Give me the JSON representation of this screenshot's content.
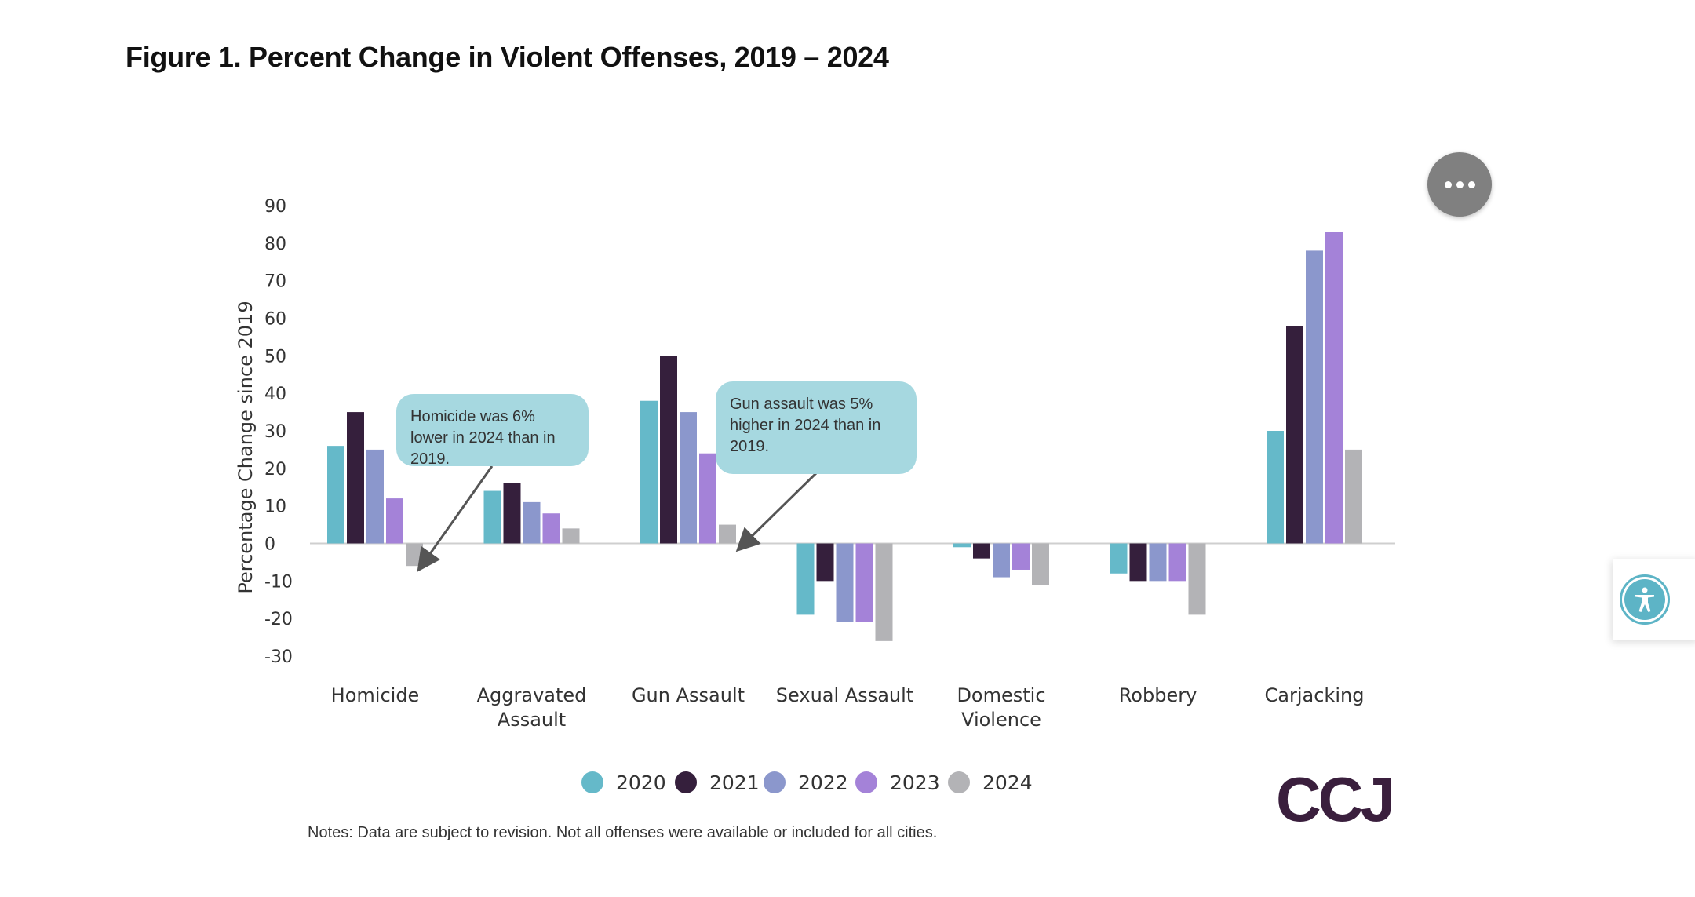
{
  "title": "Figure 1. Percent Change in Violent Offenses, 2019 – 2024",
  "chart_data": {
    "type": "bar",
    "ylabel": "Percentage Change since 2019",
    "xlabel": "",
    "ylim": [
      -30,
      90
    ],
    "yticks": [
      90,
      80,
      70,
      60,
      50,
      40,
      30,
      20,
      10,
      0,
      -10,
      -20,
      -30
    ],
    "categories": [
      [
        "Homicide"
      ],
      [
        "Aggravated",
        "Assault"
      ],
      [
        "Gun Assault"
      ],
      [
        "Sexual Assault"
      ],
      [
        "Domestic",
        "Violence"
      ],
      [
        "Robbery"
      ],
      [
        "Carjacking"
      ]
    ],
    "series": [
      {
        "name": "2020",
        "color": "#65b9c9",
        "values": [
          26,
          14,
          38,
          -19,
          -1,
          -8,
          30
        ]
      },
      {
        "name": "2021",
        "color": "#351f3c",
        "values": [
          35,
          16,
          50,
          -10,
          -4,
          -10,
          58
        ]
      },
      {
        "name": "2022",
        "color": "#8b97cc",
        "values": [
          25,
          11,
          35,
          -21,
          -9,
          -10,
          78
        ]
      },
      {
        "name": "2023",
        "color": "#a482d8",
        "values": [
          12,
          8,
          24,
          -21,
          -7,
          -10,
          83
        ]
      },
      {
        "name": "2024",
        "color": "#b3b3b6",
        "values": [
          -6,
          4,
          5,
          -26,
          -11,
          -19,
          25
        ]
      }
    ],
    "legend_position": "bottom",
    "grid": false,
    "annotations": [
      {
        "text": "Homicide was 6% lower in 2024 than in 2019.",
        "category": "Homicide",
        "series": "2024"
      },
      {
        "text": "Gun assault was 5% higher in 2024 than in 2019.",
        "category": "Gun Assault",
        "series": "2024"
      }
    ]
  },
  "notes": "Notes: Data are subject to revision. Not all offenses were available or included for all cities.",
  "logo": "CCJ",
  "icons": {
    "menu": "more-options-icon",
    "accessibility": "accessibility-icon"
  }
}
